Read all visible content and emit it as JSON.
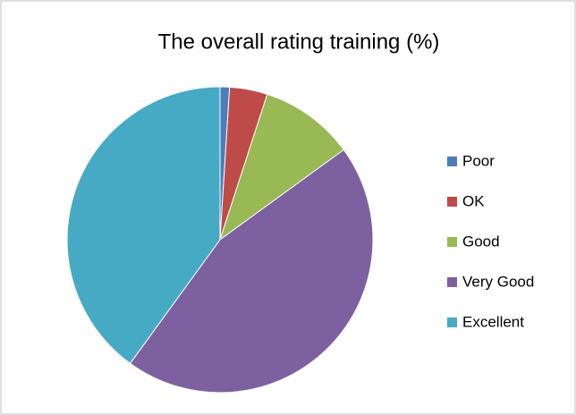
{
  "chart_data": {
    "type": "pie",
    "title": "The overall rating training (%)",
    "categories": [
      "Poor",
      "OK",
      "Good",
      "Very Good",
      "Excellent"
    ],
    "values": [
      1,
      4,
      10,
      45,
      40
    ],
    "colors": [
      "#4a7ebb",
      "#be4b48",
      "#98b954",
      "#7d60a0",
      "#46aac5"
    ],
    "legend": "right"
  }
}
